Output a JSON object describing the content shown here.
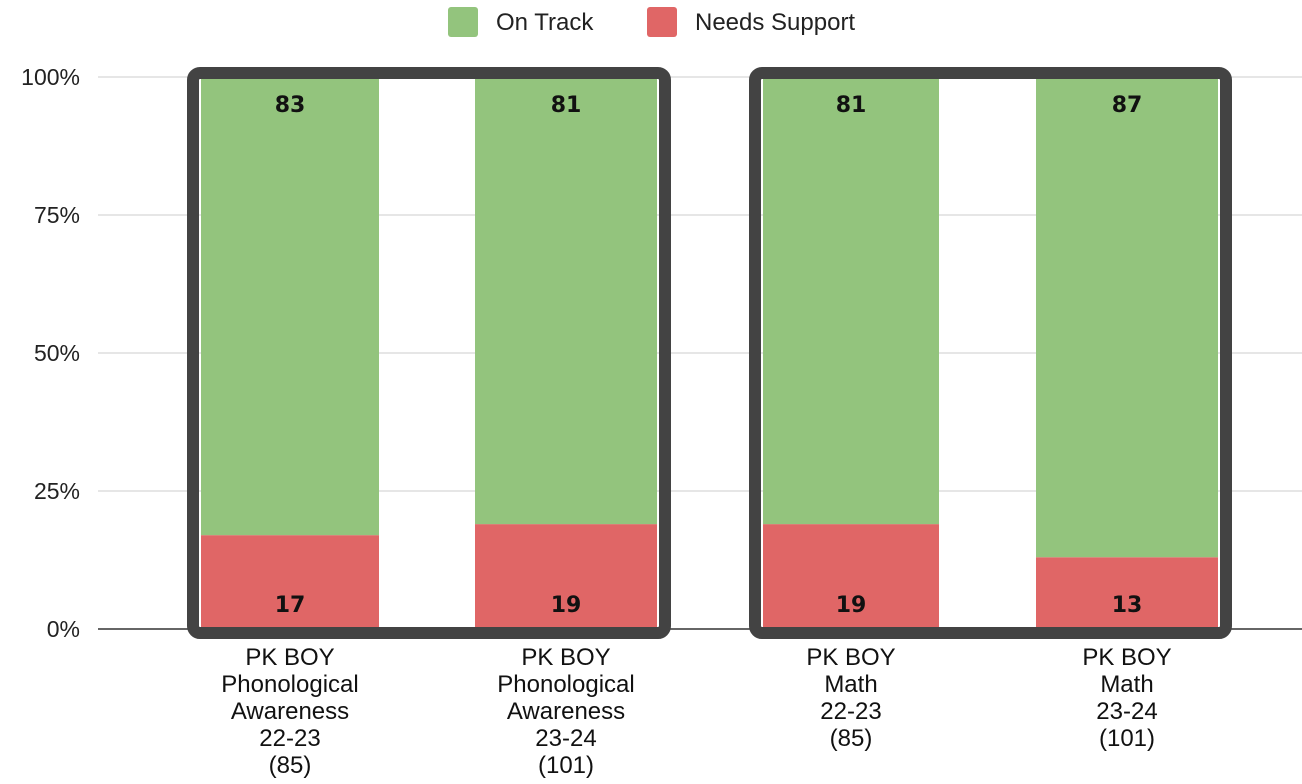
{
  "chart_data": {
    "type": "bar",
    "stacked": true,
    "normalized_percent": true,
    "categories": [
      [
        "PK BOY",
        "Phonological",
        "Awareness",
        "22-23",
        "(85)"
      ],
      [
        "PK BOY",
        "Phonological",
        "Awareness",
        "23-24",
        "(101)"
      ],
      [
        "PK BOY",
        "Math",
        "22-23",
        "(85)"
      ],
      [
        "PK BOY",
        "Math",
        "23-24",
        "(101)"
      ]
    ],
    "series": [
      {
        "name": "Needs Support",
        "color": "#e06666",
        "values": [
          17,
          19,
          19,
          13
        ]
      },
      {
        "name": "On Track",
        "color": "#93c47d",
        "values": [
          83,
          81,
          81,
          87
        ]
      }
    ],
    "legend_order": [
      "On Track",
      "Needs Support"
    ],
    "legend_position": "top-center",
    "y_ticks": [
      "0%",
      "25%",
      "50%",
      "75%",
      "100%"
    ],
    "ylim": [
      0,
      100
    ],
    "grid": true,
    "highlight_groups": [
      [
        0,
        1
      ],
      [
        2,
        3
      ]
    ],
    "highlight_color": "#434343"
  }
}
